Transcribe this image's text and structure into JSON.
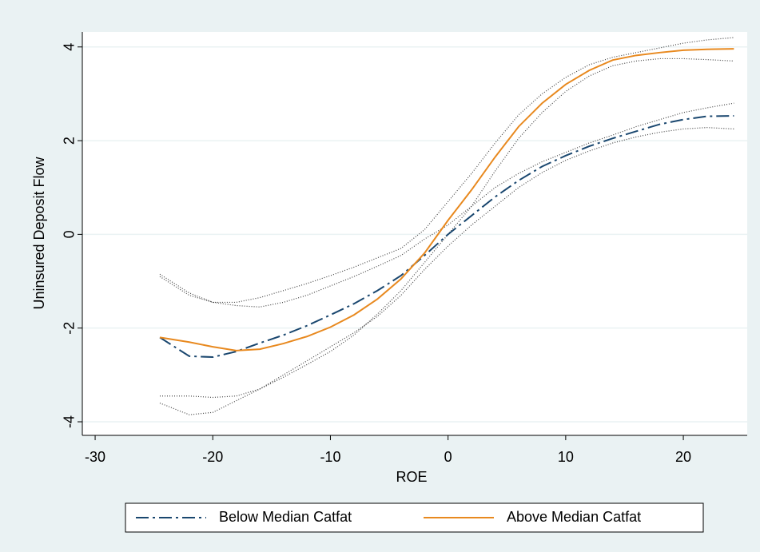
{
  "chart_data": {
    "type": "line",
    "xlabel": "ROE",
    "ylabel": "Uninsured Deposit Flow",
    "x": [
      -24.5,
      -22,
      -20,
      -18,
      -16,
      -14,
      -12,
      -10,
      -8,
      -6,
      -4,
      -2,
      0,
      2,
      4,
      6,
      8,
      10,
      12,
      14,
      16,
      18,
      20,
      22,
      24.3
    ],
    "series": [
      {
        "name": "Below Median Catfat",
        "color": "#1a476f",
        "style": "dash-dot",
        "values": [
          -2.2,
          -2.6,
          -2.62,
          -2.5,
          -2.32,
          -2.15,
          -1.95,
          -1.72,
          -1.48,
          -1.2,
          -0.88,
          -0.45,
          0.0,
          0.4,
          0.8,
          1.15,
          1.45,
          1.68,
          1.88,
          2.05,
          2.2,
          2.35,
          2.45,
          2.52,
          2.53
        ],
        "upper": [
          -0.9,
          -1.3,
          -1.45,
          -1.52,
          -1.55,
          -1.45,
          -1.3,
          -1.1,
          -0.9,
          -0.68,
          -0.45,
          -0.1,
          0.2,
          0.6,
          1.0,
          1.3,
          1.55,
          1.75,
          1.95,
          2.12,
          2.3,
          2.45,
          2.6,
          2.7,
          2.8
        ],
        "lower": [
          -3.6,
          -3.85,
          -3.8,
          -3.55,
          -3.3,
          -3.0,
          -2.7,
          -2.4,
          -2.1,
          -1.75,
          -1.3,
          -0.75,
          -0.25,
          0.2,
          0.6,
          1.0,
          1.32,
          1.58,
          1.78,
          1.95,
          2.08,
          2.18,
          2.25,
          2.28,
          2.25
        ]
      },
      {
        "name": "Above Median Catfat",
        "color": "#e8891f",
        "style": "solid",
        "values": [
          -2.2,
          -2.3,
          -2.4,
          -2.48,
          -2.45,
          -2.33,
          -2.18,
          -1.98,
          -1.72,
          -1.38,
          -0.95,
          -0.4,
          0.3,
          0.95,
          1.65,
          2.3,
          2.8,
          3.2,
          3.5,
          3.72,
          3.82,
          3.88,
          3.93,
          3.95,
          3.96
        ],
        "upper": [
          -0.85,
          -1.25,
          -1.45,
          -1.45,
          -1.35,
          -1.2,
          -1.05,
          -0.88,
          -0.7,
          -0.5,
          -0.3,
          0.1,
          0.7,
          1.3,
          1.95,
          2.55,
          3.0,
          3.35,
          3.62,
          3.78,
          3.88,
          3.98,
          4.08,
          4.15,
          4.2
        ],
        "lower": [
          -3.45,
          -3.45,
          -3.48,
          -3.45,
          -3.3,
          -3.05,
          -2.78,
          -2.5,
          -2.15,
          -1.7,
          -1.2,
          -0.6,
          0.0,
          0.6,
          1.35,
          2.05,
          2.6,
          3.05,
          3.38,
          3.6,
          3.7,
          3.75,
          3.75,
          3.73,
          3.7
        ]
      }
    ],
    "ci_color": "#444444",
    "xlim": [
      -31.09,
      25.43
    ],
    "xticks": [
      -30,
      -20,
      -10,
      0,
      10,
      20
    ],
    "ylim": [
      -4.29,
      4.32
    ],
    "yticks": [
      -4,
      -2,
      0,
      2,
      4
    ],
    "grid": true,
    "legend": "bottom"
  }
}
